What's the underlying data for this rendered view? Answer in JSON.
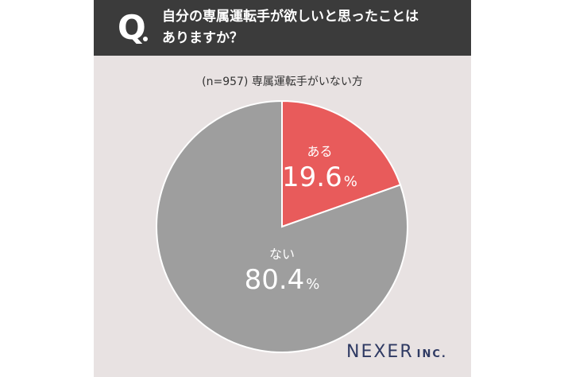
{
  "question": {
    "mark": "Q",
    "line1": "自分の専属運転手が欲しいと思ったことは",
    "line2": "ありますか？"
  },
  "sample_note": "(n=957) 専属運転手がいない方",
  "chart_data": {
    "type": "pie",
    "title": "",
    "slices": [
      {
        "label": "ある",
        "value": 19.6,
        "display": "19.6",
        "color": "#e85b5b"
      },
      {
        "label": "ない",
        "value": 80.4,
        "display": "80.4",
        "color": "#9e9e9e"
      }
    ],
    "unit": "%",
    "start_angle_deg": 0,
    "direction": "clockwise"
  },
  "brand": {
    "name": "NEXER",
    "suffix": "INC."
  },
  "colors": {
    "background": "#e8e2e2",
    "header": "#3b3b3b",
    "brand": "#2f3a63"
  }
}
